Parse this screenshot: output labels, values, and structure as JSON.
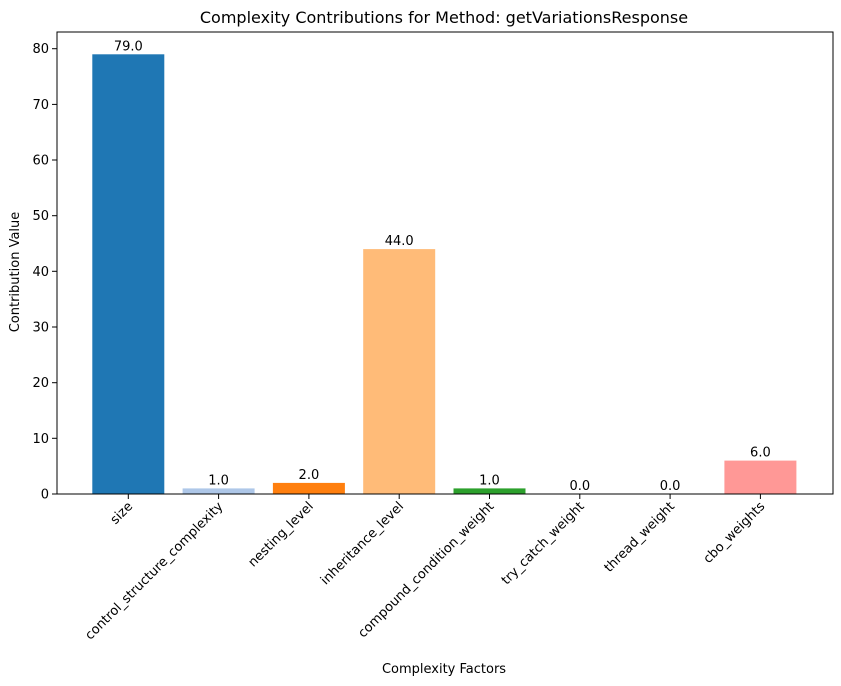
{
  "chart_data": {
    "type": "bar",
    "title": "Complexity Contributions for Method: getVariationsResponse",
    "xlabel": "Complexity Factors",
    "ylabel": "Contribution Value",
    "categories": [
      "size",
      "control_structure_complexity",
      "nesting_level",
      "inheritance_level",
      "compound_condition_weight",
      "try_catch_weight",
      "thread_weight",
      "cbo_weights"
    ],
    "values": [
      79.0,
      1.0,
      2.0,
      44.0,
      1.0,
      0.0,
      0.0,
      6.0
    ],
    "value_labels": [
      "79.0",
      "1.0",
      "2.0",
      "44.0",
      "1.0",
      "0.0",
      "0.0",
      "6.0"
    ],
    "colors": [
      "#1f77b4",
      "#aec7e8",
      "#ff7f0e",
      "#ffbb78",
      "#2ca02c",
      "#98df8a",
      "#d62728",
      "#ff9896"
    ],
    "ylim": [
      0,
      83
    ],
    "yticks": [
      0,
      10,
      20,
      30,
      40,
      50,
      60,
      70,
      80
    ],
    "ytick_labels": [
      "0",
      "10",
      "20",
      "30",
      "40",
      "50",
      "60",
      "70",
      "80"
    ],
    "grid": false,
    "legend": "none"
  }
}
